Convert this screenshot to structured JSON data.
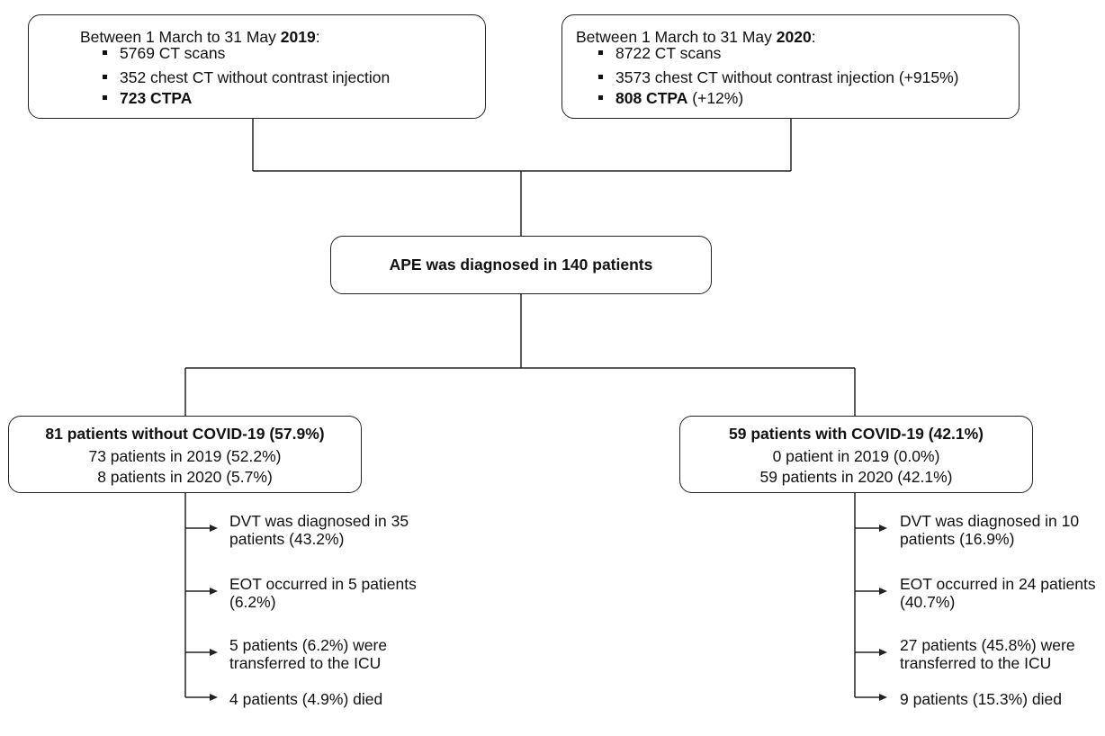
{
  "top_left": {
    "header_prefix": "Between 1 March to 31 May ",
    "header_year": "2019",
    "header_suffix": ":",
    "items": [
      {
        "bold": "",
        "text": "5769 CT scans"
      },
      {
        "bold": "",
        "text": "352 chest CT without contrast injection"
      },
      {
        "bold": "723 CTPA",
        "text": ""
      }
    ]
  },
  "top_right": {
    "header_prefix": "Between 1 March to 31 May ",
    "header_year": "2020",
    "header_suffix": ":",
    "items": [
      {
        "bold": "",
        "text": "8722 CT scans"
      },
      {
        "bold": "",
        "text": "3573 chest CT without contrast injection (+915%)"
      },
      {
        "bold": "808 CTPA",
        "text": " (+12%)"
      }
    ]
  },
  "center_box": {
    "label": "APE was diagnosed in 140 patients"
  },
  "left_group": {
    "title": "81 patients without COVID-19 (57.9%)",
    "lines": [
      "73 patients in 2019 (52.2%)",
      "8 patients in 2020 (5.7%)"
    ],
    "outcomes": [
      [
        "DVT was diagnosed in 35",
        "patients (43.2%)"
      ],
      [
        "EOT occurred in 5 patients",
        "(6.2%)"
      ],
      [
        "5 patients (6.2%) were",
        "transferred to the ICU"
      ],
      [
        "4 patients (4.9%) died"
      ]
    ]
  },
  "right_group": {
    "title": "59 patients with COVID-19 (42.1%)",
    "lines": [
      "0 patient in 2019 (0.0%)",
      "59 patients in 2020 (42.1%)"
    ],
    "outcomes": [
      [
        "DVT was diagnosed in 10",
        "patients (16.9%)"
      ],
      [
        "EOT occurred in 24 patients",
        "(40.7%)"
      ],
      [
        "27 patients (45.8%) were",
        "transferred to the ICU"
      ],
      [
        "9 patients (15.3%) died"
      ]
    ]
  }
}
